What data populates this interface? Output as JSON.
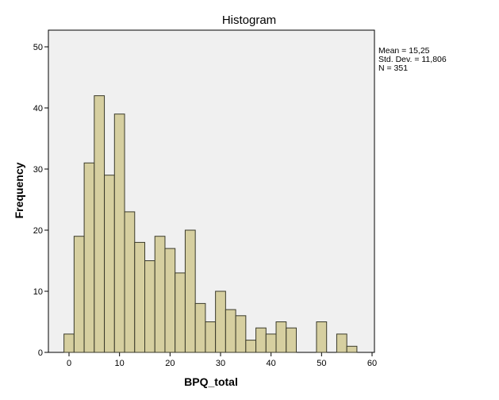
{
  "chart_data": {
    "type": "bar",
    "title": "Histogram",
    "xlabel": "BPQ_total",
    "ylabel": "Frequency",
    "xlim": [
      -3.5,
      60
    ],
    "ylim": [
      0,
      52
    ],
    "xticks": [
      0,
      10,
      20,
      30,
      40,
      50,
      60
    ],
    "yticks": [
      0,
      10,
      20,
      30,
      40,
      50
    ],
    "bin_width": 2,
    "bar_color": "#d6cfa0",
    "bar_edge_color": "#3a3a2a",
    "plot_bg": "#f0f0f0",
    "bins": [
      {
        "x": 0,
        "count": 3
      },
      {
        "x": 2,
        "count": 19
      },
      {
        "x": 4,
        "count": 31
      },
      {
        "x": 6,
        "count": 42
      },
      {
        "x": 8,
        "count": 29
      },
      {
        "x": 10,
        "count": 39
      },
      {
        "x": 12,
        "count": 23
      },
      {
        "x": 14,
        "count": 18
      },
      {
        "x": 16,
        "count": 15
      },
      {
        "x": 18,
        "count": 19
      },
      {
        "x": 20,
        "count": 17
      },
      {
        "x": 22,
        "count": 13
      },
      {
        "x": 24,
        "count": 20
      },
      {
        "x": 26,
        "count": 8
      },
      {
        "x": 28,
        "count": 5
      },
      {
        "x": 30,
        "count": 10
      },
      {
        "x": 32,
        "count": 7
      },
      {
        "x": 34,
        "count": 6
      },
      {
        "x": 36,
        "count": 2
      },
      {
        "x": 38,
        "count": 4
      },
      {
        "x": 40,
        "count": 3
      },
      {
        "x": 42,
        "count": 5
      },
      {
        "x": 44,
        "count": 4
      },
      {
        "x": 50,
        "count": 5
      },
      {
        "x": 54,
        "count": 3
      },
      {
        "x": 56,
        "count": 1
      }
    ],
    "stats": {
      "mean": "Mean = 15,25",
      "std": "Std. Dev. = 11,806",
      "n": "N = 351"
    }
  }
}
